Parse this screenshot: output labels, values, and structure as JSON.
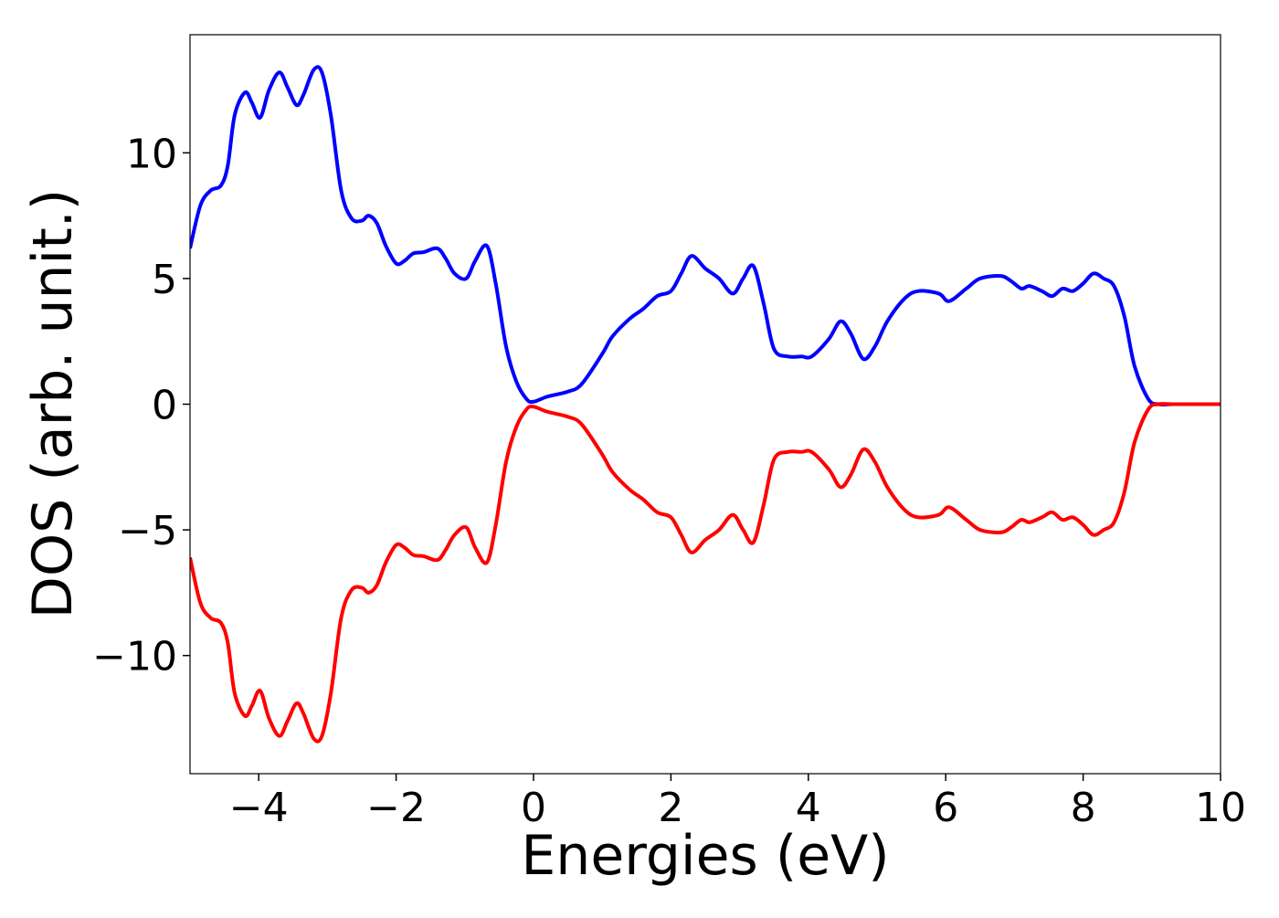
{
  "chart_data": {
    "type": "line",
    "xlabel": "Energies (eV)",
    "ylabel": "DOS (arb. unit.)",
    "xlim": [
      -5,
      10
    ],
    "ylim": [
      -14.7,
      14.7
    ],
    "grid": false,
    "legend": "none",
    "x_ticks": [
      -4,
      -2,
      0,
      2,
      4,
      6,
      8,
      10
    ],
    "x_tick_labels": [
      "−4",
      "−2",
      "0",
      "2",
      "4",
      "6",
      "8",
      "10"
    ],
    "y_ticks": [
      -10,
      -5,
      0,
      5,
      10
    ],
    "y_tick_labels": [
      "−10",
      "−5",
      "0",
      "5",
      "10"
    ],
    "series": [
      {
        "color": "#0000ff",
        "x": [
          -5.0,
          -4.85,
          -4.7,
          -4.55,
          -4.45,
          -4.35,
          -4.2,
          -4.1,
          -3.98,
          -3.85,
          -3.7,
          -3.58,
          -3.45,
          -3.35,
          -3.2,
          -3.08,
          -2.95,
          -2.8,
          -2.65,
          -2.5,
          -2.4,
          -2.28,
          -2.15,
          -2.0,
          -1.88,
          -1.75,
          -1.6,
          -1.4,
          -1.28,
          -1.15,
          -0.98,
          -0.85,
          -0.68,
          -0.55,
          -0.4,
          -0.25,
          -0.1,
          0.0,
          0.2,
          0.5,
          0.7,
          1.0,
          1.15,
          1.4,
          1.6,
          1.8,
          2.0,
          2.15,
          2.3,
          2.5,
          2.7,
          2.9,
          3.05,
          3.2,
          3.35,
          3.5,
          3.7,
          3.9,
          4.05,
          4.3,
          4.47,
          4.62,
          4.8,
          4.97,
          5.15,
          5.4,
          5.6,
          5.9,
          6.05,
          6.3,
          6.5,
          6.8,
          6.95,
          7.1,
          7.22,
          7.4,
          7.55,
          7.7,
          7.85,
          8.0,
          8.15,
          8.3,
          8.45,
          8.6,
          8.75,
          8.95,
          9.1,
          9.3,
          9.6,
          10.0
        ],
        "y": [
          6.2,
          7.9,
          8.5,
          8.7,
          9.5,
          11.5,
          12.4,
          12.0,
          11.4,
          12.5,
          13.2,
          12.6,
          11.9,
          12.3,
          13.3,
          13.2,
          11.5,
          8.5,
          7.4,
          7.3,
          7.5,
          7.2,
          6.3,
          5.6,
          5.7,
          6.0,
          6.05,
          6.2,
          5.8,
          5.2,
          5.0,
          5.7,
          6.3,
          4.8,
          2.3,
          0.9,
          0.2,
          0.1,
          0.3,
          0.5,
          0.8,
          2.0,
          2.7,
          3.4,
          3.8,
          4.3,
          4.5,
          5.2,
          5.9,
          5.4,
          5.0,
          4.4,
          5.0,
          5.5,
          4.0,
          2.2,
          1.9,
          1.9,
          1.9,
          2.6,
          3.3,
          2.8,
          1.8,
          2.3,
          3.3,
          4.2,
          4.5,
          4.4,
          4.1,
          4.6,
          5.0,
          5.1,
          4.9,
          4.6,
          4.7,
          4.5,
          4.3,
          4.6,
          4.5,
          4.8,
          5.2,
          5.0,
          4.7,
          3.5,
          1.5,
          0.2,
          0.0,
          0.0,
          0.0,
          0.0
        ]
      },
      {
        "color": "#ff0000",
        "x": [
          -5.0,
          -4.85,
          -4.7,
          -4.55,
          -4.45,
          -4.35,
          -4.2,
          -4.1,
          -3.98,
          -3.85,
          -3.7,
          -3.58,
          -3.45,
          -3.35,
          -3.2,
          -3.08,
          -2.95,
          -2.8,
          -2.65,
          -2.5,
          -2.4,
          -2.28,
          -2.15,
          -2.0,
          -1.88,
          -1.75,
          -1.6,
          -1.4,
          -1.28,
          -1.15,
          -0.98,
          -0.85,
          -0.68,
          -0.55,
          -0.4,
          -0.25,
          -0.1,
          0.0,
          0.2,
          0.5,
          0.7,
          1.0,
          1.15,
          1.4,
          1.6,
          1.8,
          2.0,
          2.15,
          2.3,
          2.5,
          2.7,
          2.9,
          3.05,
          3.2,
          3.35,
          3.5,
          3.7,
          3.9,
          4.05,
          4.3,
          4.47,
          4.62,
          4.8,
          4.97,
          5.15,
          5.4,
          5.6,
          5.9,
          6.05,
          6.3,
          6.5,
          6.8,
          6.95,
          7.1,
          7.22,
          7.4,
          7.55,
          7.7,
          7.85,
          8.0,
          8.15,
          8.3,
          8.45,
          8.6,
          8.75,
          8.95,
          9.1,
          9.3,
          9.6,
          10.0
        ],
        "y": [
          -6.1,
          -7.9,
          -8.5,
          -8.7,
          -9.5,
          -11.5,
          -12.4,
          -12.0,
          -11.4,
          -12.5,
          -13.2,
          -12.6,
          -11.9,
          -12.3,
          -13.3,
          -13.2,
          -11.5,
          -8.5,
          -7.4,
          -7.3,
          -7.5,
          -7.2,
          -6.3,
          -5.6,
          -5.7,
          -6.0,
          -6.05,
          -6.2,
          -5.8,
          -5.2,
          -4.9,
          -5.7,
          -6.3,
          -4.8,
          -2.3,
          -0.9,
          -0.2,
          -0.1,
          -0.3,
          -0.5,
          -0.8,
          -2.0,
          -2.7,
          -3.4,
          -3.8,
          -4.3,
          -4.5,
          -5.2,
          -5.9,
          -5.4,
          -5.0,
          -4.4,
          -5.0,
          -5.5,
          -4.0,
          -2.2,
          -1.9,
          -1.9,
          -1.9,
          -2.6,
          -3.3,
          -2.8,
          -1.8,
          -2.3,
          -3.3,
          -4.2,
          -4.5,
          -4.4,
          -4.1,
          -4.6,
          -5.0,
          -5.1,
          -4.9,
          -4.6,
          -4.7,
          -4.5,
          -4.3,
          -4.6,
          -4.5,
          -4.8,
          -5.2,
          -5.0,
          -4.7,
          -3.5,
          -1.5,
          -0.2,
          0.0,
          0.0,
          0.0,
          0.0
        ]
      }
    ]
  }
}
